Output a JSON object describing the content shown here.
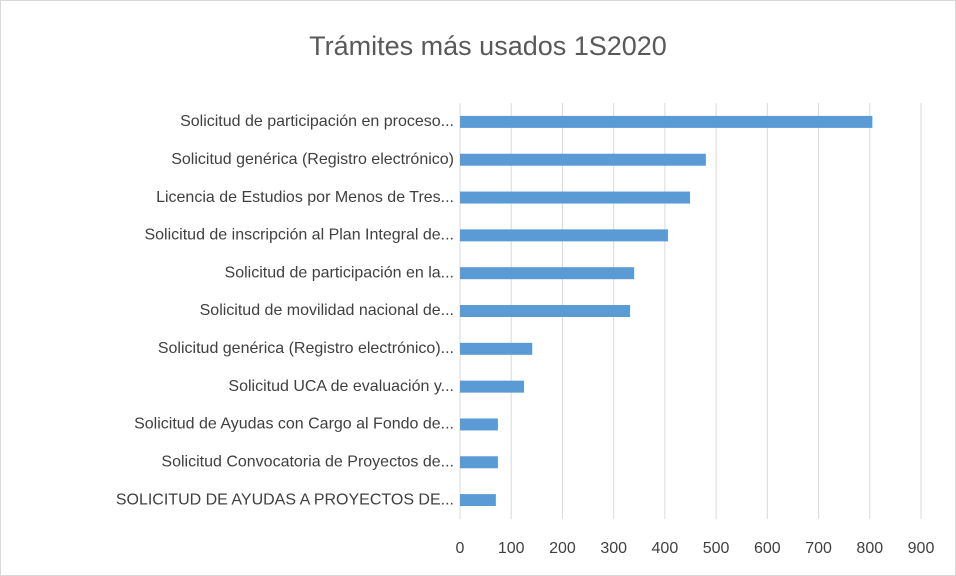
{
  "chart_data": {
    "type": "barh",
    "title": "Trámites más usados 1S2020",
    "categories": [
      "Solicitud de participación en proceso...",
      "Solicitud genérica (Registro electrónico)",
      "Licencia de Estudios por Menos de Tres...",
      "Solicitud de inscripción al Plan Integral de...",
      "Solicitud de participación en la...",
      "Solicitud de movilidad nacional de...",
      "Solicitud genérica (Registro electrónico)...",
      "Solicitud UCA de evaluación y...",
      "Solicitud de Ayudas con Cargo al Fondo de...",
      "Solicitud Convocatoria de Proyectos de...",
      "SOLICITUD DE AYUDAS A PROYECTOS DE..."
    ],
    "values": [
      805,
      480,
      449,
      406,
      340,
      332,
      141,
      125,
      74,
      74,
      70
    ],
    "color": "#5b9bd5",
    "xlim": [
      0,
      900
    ],
    "xticks": [
      0,
      100,
      200,
      300,
      400,
      500,
      600,
      700,
      800,
      900
    ],
    "grid": true
  }
}
